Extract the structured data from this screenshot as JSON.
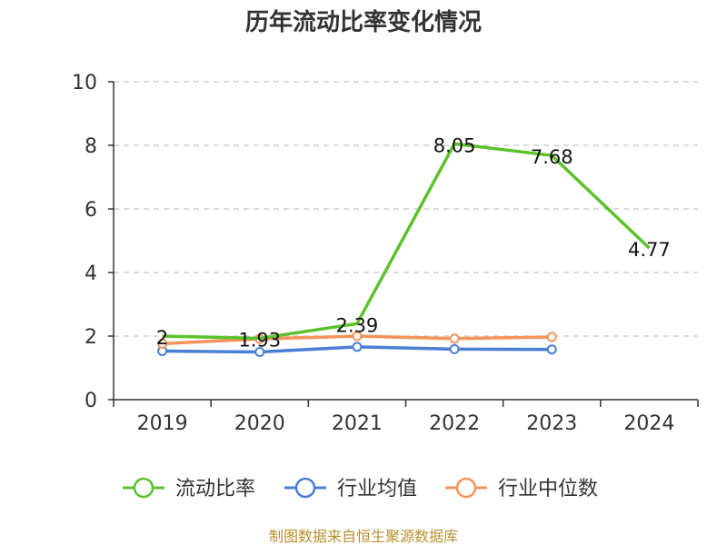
{
  "chart_data": {
    "type": "line",
    "title": "历年流动比率变化情况",
    "categories": [
      "2019",
      "2020",
      "2021",
      "2022",
      "2023",
      "2024"
    ],
    "ylim": [
      0,
      10
    ],
    "yticks": [
      0,
      2,
      4,
      6,
      8,
      10
    ],
    "grid": true,
    "legend_position": "bottom",
    "series": [
      {
        "name": "流动比率",
        "color": "#5cc22b",
        "values": [
          2,
          1.93,
          2.39,
          8.05,
          7.68,
          4.77
        ],
        "labels": [
          "2",
          "1.93",
          "2.39",
          "8.05",
          "7.68",
          "4.77"
        ],
        "markers": false
      },
      {
        "name": "行业均值",
        "color": "#4a7fd6",
        "values": [
          1.53,
          1.5,
          1.66,
          1.59,
          1.58,
          null
        ],
        "markers": true
      },
      {
        "name": "行业中位数",
        "color": "#f5935a",
        "values": [
          1.76,
          1.91,
          2.0,
          1.92,
          1.97,
          null
        ],
        "markers": true
      }
    ]
  },
  "footer": {
    "source": "制图数据来自恒生聚源数据库"
  }
}
